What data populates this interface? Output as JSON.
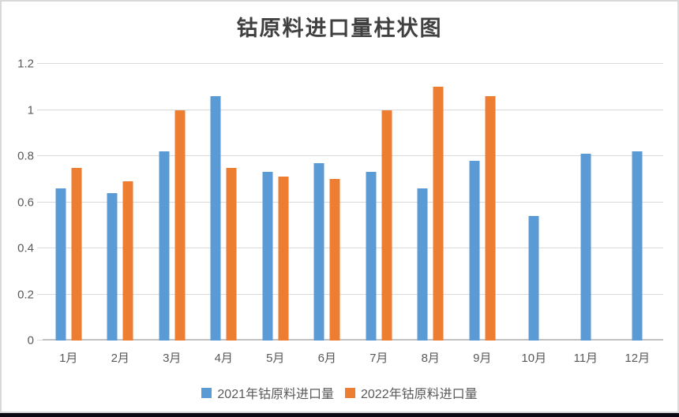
{
  "chart_data": {
    "type": "bar",
    "title": "钴原料进口量柱状图",
    "categories": [
      "1月",
      "2月",
      "3月",
      "4月",
      "5月",
      "6月",
      "7月",
      "8月",
      "9月",
      "10月",
      "11月",
      "12月"
    ],
    "series": [
      {
        "name": "2021年钴原料进口量",
        "color": "#5B9BD5",
        "values": [
          0.66,
          0.64,
          0.82,
          1.06,
          0.73,
          0.77,
          0.73,
          0.66,
          0.78,
          0.54,
          0.81,
          0.82
        ]
      },
      {
        "name": "2022年钴原料进口量",
        "color": "#ED7D31",
        "values": [
          0.75,
          0.69,
          1.0,
          0.75,
          0.71,
          0.7,
          1.0,
          1.1,
          1.06,
          null,
          null,
          null
        ]
      }
    ],
    "xlabel": "",
    "ylabel": "",
    "ylim": [
      0,
      1.2
    ],
    "yticks": [
      0,
      0.2,
      0.4,
      0.6,
      0.8,
      1,
      1.2
    ],
    "ytick_labels": [
      "0",
      "0.2",
      "0.4",
      "0.6",
      "0.8",
      "1",
      "1.2"
    ],
    "grid": true,
    "legend_position": "bottom",
    "styles": {
      "grid_color": "#d9d9d9",
      "axis_color": "#c0c0c0",
      "tick_color": "#d9d9d9",
      "text_color": "#595959",
      "title_color": "#404040",
      "frame_border_color": "#d9d9d9",
      "bottom_bar_color": "#0a0a14",
      "background": "#ffffff"
    }
  }
}
